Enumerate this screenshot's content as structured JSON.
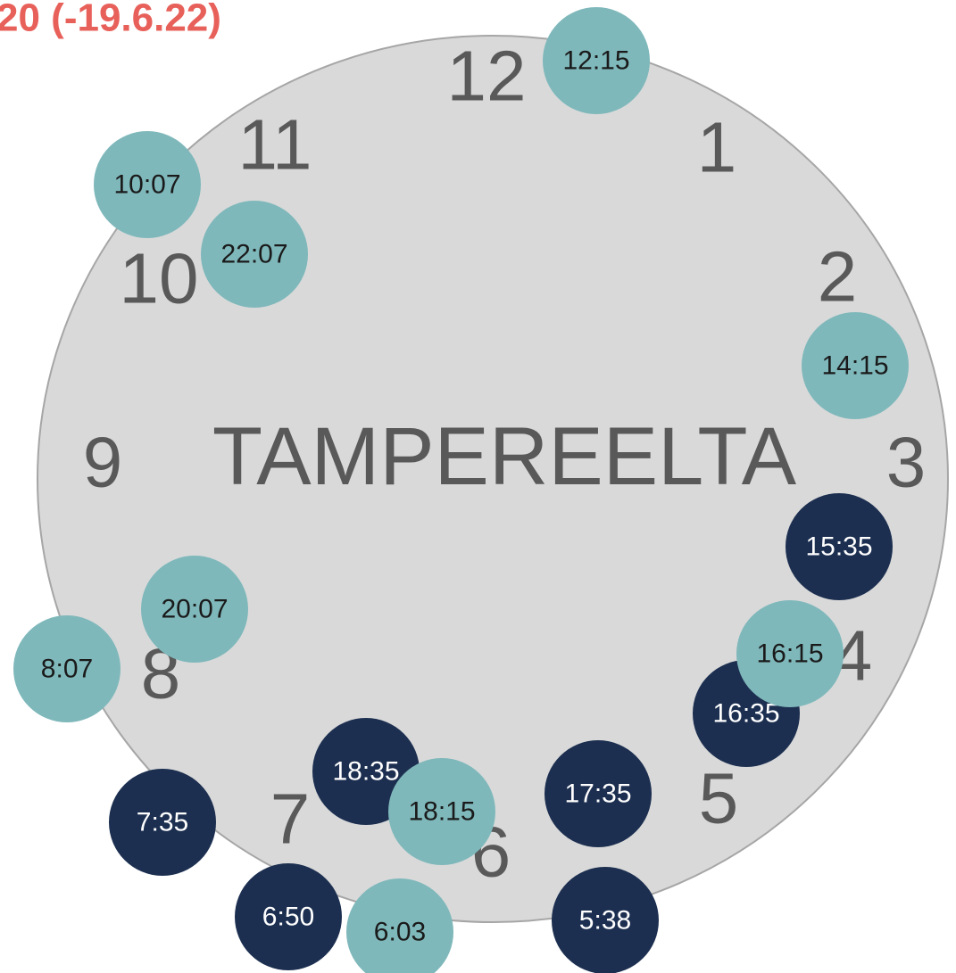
{
  "title": "20 (-19.6.22)",
  "center_label": "TAMPEREELTA",
  "hours": [
    "12",
    "1",
    "2",
    "3",
    "4",
    "5",
    "6",
    "7",
    "8",
    "9",
    "10",
    "11"
  ],
  "bubbles": [
    {
      "label": "12:15",
      "color": "#7fb8bb"
    },
    {
      "label": "10:07",
      "color": "#7fb8bb"
    },
    {
      "label": "22:07",
      "color": "#7fb8bb"
    },
    {
      "label": "14:15",
      "color": "#7fb8bb"
    },
    {
      "label": "15:35",
      "color": "#1c2f50"
    },
    {
      "label": "16:35",
      "color": "#1c2f50"
    },
    {
      "label": "16:15",
      "color": "#7fb8bb"
    },
    {
      "label": "20:07",
      "color": "#7fb8bb"
    },
    {
      "label": "8:07",
      "color": "#7fb8bb"
    },
    {
      "label": "18:35",
      "color": "#1c2f50"
    },
    {
      "label": "18:15",
      "color": "#7fb8bb"
    },
    {
      "label": "17:35",
      "color": "#1c2f50"
    },
    {
      "label": "7:35",
      "color": "#1c2f50"
    },
    {
      "label": "6:50",
      "color": "#1c2f50"
    },
    {
      "label": "6:03",
      "color": "#7fb8bb"
    },
    {
      "label": "5:38",
      "color": "#1c2f50"
    }
  ]
}
